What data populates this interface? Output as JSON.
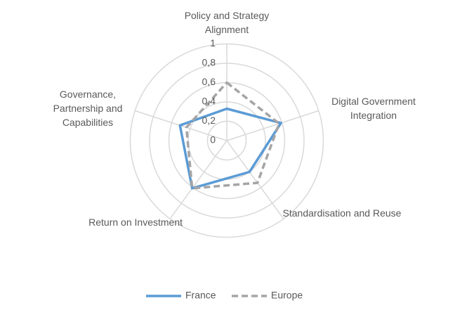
{
  "chart_data": {
    "type": "radar",
    "categories": [
      "Policy and Strategy Alignment",
      "Digital Government Integration",
      "Standardisation and Reuse",
      "Return on Investment",
      "Governance, Partnership and Capabilities"
    ],
    "series": [
      {
        "name": "France",
        "color": "#5b9bd5",
        "dashed": false,
        "values": [
          0.33,
          0.59,
          0.4,
          0.61,
          0.51
        ]
      },
      {
        "name": "Europe",
        "color": "#a5a5a5",
        "dashed": true,
        "values": [
          0.6,
          0.57,
          0.54,
          0.61,
          0.44
        ]
      }
    ],
    "ylim": [
      0,
      1
    ],
    "yticks": [
      0,
      {
        "value": 0.2,
        "label": "0,2"
      },
      {
        "value": 0.4,
        "label": "0,4"
      },
      {
        "value": 0.6,
        "label": "0,6"
      },
      {
        "value": 0.8,
        "label": "0,8"
      },
      1
    ],
    "grid": true,
    "legend": "bottom"
  }
}
